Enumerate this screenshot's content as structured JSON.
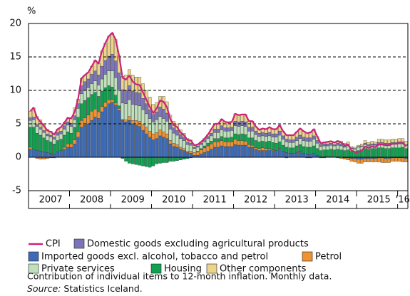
{
  "chart_data": {
    "type": "bar",
    "stacked": true,
    "y_label": "%",
    "ylim": [
      -5,
      20
    ],
    "yticks": [
      -5,
      0,
      5,
      10,
      15,
      20
    ],
    "grid": true,
    "note": "Contribution of individual items to 12-month inflation. Monthly data.",
    "source_label": "Source:",
    "source": "Statistics Iceland.",
    "categories": [
      null,
      null,
      null,
      null,
      null,
      null,
      "2007",
      null,
      null,
      null,
      null,
      null,
      null,
      null,
      null,
      null,
      null,
      null,
      "2008",
      null,
      null,
      null,
      null,
      null,
      null,
      null,
      null,
      null,
      null,
      null,
      "2009",
      null,
      null,
      null,
      null,
      null,
      null,
      null,
      null,
      null,
      null,
      null,
      "2010",
      null,
      null,
      null,
      null,
      null,
      null,
      null,
      null,
      null,
      null,
      null,
      "2011",
      null,
      null,
      null,
      null,
      null,
      null,
      null,
      null,
      null,
      null,
      null,
      "2012",
      null,
      null,
      null,
      null,
      null,
      null,
      null,
      null,
      null,
      null,
      null,
      "2013",
      null,
      null,
      null,
      null,
      null,
      null,
      null,
      null,
      null,
      null,
      null,
      "2014",
      null,
      null,
      null,
      null,
      null,
      null,
      null,
      null,
      null,
      null,
      null,
      "2015",
      null,
      null,
      null,
      null,
      null,
      null,
      "'16",
      null
    ],
    "series": [
      {
        "name": "CPI",
        "type": "line",
        "color": "#cc2277",
        "values": [
          6.9,
          7.4,
          5.9,
          5.3,
          4.7,
          4.0,
          3.8,
          3.4,
          4.2,
          4.5,
          5.2,
          5.9,
          5.8,
          6.8,
          8.7,
          11.8,
          12.3,
          12.7,
          13.6,
          14.5,
          14.0,
          15.9,
          17.1,
          18.1,
          18.6,
          17.6,
          15.2,
          11.9,
          11.6,
          12.2,
          11.3,
          10.9,
          10.8,
          9.7,
          8.6,
          7.5,
          6.6,
          7.3,
          8.5,
          8.3,
          7.5,
          5.7,
          4.8,
          4.5,
          3.7,
          3.3,
          2.6,
          2.5,
          1.8,
          1.9,
          2.3,
          2.8,
          3.4,
          4.2,
          5.0,
          5.0,
          5.7,
          5.3,
          5.2,
          5.3,
          6.5,
          6.3,
          6.4,
          6.4,
          5.4,
          5.4,
          4.6,
          4.1,
          4.3,
          4.2,
          4.5,
          4.2,
          4.2,
          4.8,
          3.9,
          3.3,
          3.3,
          3.3,
          3.8,
          4.3,
          3.9,
          3.6,
          3.7,
          4.2,
          3.1,
          2.1,
          2.2,
          2.3,
          2.4,
          2.2,
          2.4,
          2.2,
          1.8,
          1.9,
          1.0,
          0.8,
          0.8,
          1.0,
          1.6,
          1.4,
          1.6,
          1.5,
          1.9,
          1.9,
          1.8,
          1.8,
          2.0,
          2.0,
          2.1,
          2.1,
          1.6
        ]
      },
      {
        "name": "Domestic goods excluding agricultural products",
        "color": "#7c74b8",
        "values": [
          0.4,
          0.4,
          0.3,
          0.3,
          0.3,
          0.3,
          0.3,
          0.3,
          0.4,
          0.4,
          0.5,
          0.5,
          0.5,
          0.6,
          0.7,
          1.2,
          1.3,
          1.3,
          1.4,
          1.5,
          1.5,
          1.9,
          2.1,
          2.2,
          2.5,
          2.5,
          2.4,
          2.0,
          2.0,
          2.1,
          2.0,
          1.9,
          1.9,
          1.7,
          1.5,
          1.3,
          1.1,
          1.2,
          1.4,
          1.4,
          1.2,
          0.9,
          0.8,
          0.7,
          0.6,
          0.5,
          0.4,
          0.3,
          0.2,
          0.2,
          0.2,
          0.3,
          0.3,
          0.4,
          0.5,
          0.5,
          0.6,
          0.5,
          0.5,
          0.5,
          0.7,
          0.7,
          0.7,
          0.7,
          0.6,
          0.6,
          0.5,
          0.5,
          0.5,
          0.5,
          0.5,
          0.5,
          0.5,
          0.6,
          0.5,
          0.4,
          0.4,
          0.4,
          0.5,
          0.5,
          0.5,
          0.5,
          0.5,
          0.5,
          0.4,
          0.3,
          0.3,
          0.3,
          0.3,
          0.2,
          0.3,
          0.3,
          0.2,
          0.2,
          0.1,
          0.1,
          0.1,
          0.1,
          0.2,
          0.2,
          0.2,
          0.2,
          0.2,
          0.2,
          0.2,
          0.2,
          0.2,
          0.2,
          0.2,
          0.2,
          0.1
        ]
      },
      {
        "name": "Imported goods excl. alcohol, tobacco and petrol",
        "color": "#3d6ab5",
        "values": [
          1.2,
          1.2,
          1.0,
          0.9,
          0.8,
          0.7,
          0.6,
          0.5,
          0.8,
          0.9,
          1.2,
          1.5,
          1.5,
          2.0,
          3.0,
          4.5,
          4.8,
          5.0,
          5.5,
          6.0,
          5.8,
          6.8,
          7.5,
          8.0,
          8.2,
          7.8,
          7.0,
          5.5,
          5.3,
          5.5,
          5.0,
          4.8,
          4.6,
          4.0,
          3.5,
          3.0,
          2.6,
          2.8,
          3.2,
          3.0,
          2.8,
          2.0,
          1.6,
          1.5,
          1.2,
          1.0,
          0.7,
          0.6,
          0.3,
          0.3,
          0.5,
          0.7,
          0.9,
          1.2,
          1.5,
          1.5,
          1.7,
          1.6,
          1.6,
          1.6,
          1.9,
          1.8,
          1.8,
          1.8,
          1.5,
          1.5,
          1.2,
          1.0,
          1.0,
          1.0,
          1.1,
          1.0,
          1.0,
          1.2,
          0.9,
          0.7,
          0.6,
          0.6,
          0.7,
          0.8,
          0.6,
          0.5,
          0.5,
          0.6,
          0.3,
          0.1,
          0.1,
          0.1,
          0.1,
          0.0,
          0.1,
          0.0,
          -0.1,
          -0.1,
          -0.2,
          -0.2,
          -0.3,
          -0.3,
          -0.2,
          -0.2,
          -0.2,
          -0.2,
          -0.1,
          -0.1,
          -0.2,
          -0.2,
          -0.1,
          -0.1,
          -0.1,
          -0.1,
          -0.2
        ]
      },
      {
        "name": "Petrol",
        "color": "#f0922e",
        "values": [
          0.3,
          0.0,
          -0.2,
          -0.3,
          -0.3,
          -0.2,
          -0.1,
          -0.1,
          0.0,
          0.1,
          0.3,
          0.5,
          0.5,
          0.6,
          0.8,
          1.0,
          1.1,
          1.3,
          1.4,
          1.2,
          1.0,
          0.8,
          0.7,
          0.6,
          0.4,
          0.3,
          0.3,
          0.2,
          0.3,
          0.6,
          0.5,
          0.7,
          0.8,
          0.9,
          1.0,
          0.9,
          0.9,
          0.9,
          0.9,
          0.8,
          0.7,
          0.5,
          0.5,
          0.4,
          0.3,
          0.3,
          0.2,
          0.3,
          0.4,
          0.5,
          0.6,
          0.7,
          0.8,
          0.8,
          0.8,
          0.8,
          0.8,
          0.7,
          0.7,
          0.7,
          0.8,
          0.7,
          0.7,
          0.6,
          0.4,
          0.3,
          0.2,
          0.3,
          0.4,
          0.3,
          0.2,
          0.1,
          0.0,
          0.1,
          0.0,
          -0.1,
          0.0,
          0.0,
          0.1,
          0.1,
          0.0,
          -0.1,
          -0.1,
          0.0,
          0.0,
          -0.1,
          -0.1,
          0.0,
          0.0,
          0.0,
          -0.1,
          -0.2,
          -0.2,
          -0.3,
          -0.4,
          -0.5,
          -0.6,
          -0.6,
          -0.5,
          -0.5,
          -0.5,
          -0.5,
          -0.6,
          -0.7,
          -0.6,
          -0.6,
          -0.5,
          -0.5,
          -0.5,
          -0.6,
          -0.5
        ]
      },
      {
        "name": "Private services",
        "color": "#bfe0bb",
        "values": [
          1.0,
          1.1,
          1.0,
          0.9,
          0.8,
          0.7,
          0.7,
          0.7,
          0.8,
          0.8,
          0.9,
          1.0,
          1.0,
          1.1,
          1.3,
          1.5,
          1.5,
          1.5,
          1.6,
          1.7,
          1.7,
          1.8,
          2.0,
          2.2,
          2.4,
          2.6,
          2.5,
          2.4,
          2.4,
          2.5,
          2.4,
          2.3,
          2.3,
          2.2,
          2.0,
          1.9,
          1.8,
          1.9,
          2.0,
          2.0,
          1.9,
          1.7,
          1.5,
          1.4,
          1.3,
          1.2,
          1.0,
          0.9,
          0.6,
          0.6,
          0.6,
          0.6,
          0.7,
          0.8,
          0.9,
          0.9,
          1.0,
          1.0,
          1.0,
          1.0,
          1.2,
          1.2,
          1.2,
          1.2,
          1.0,
          1.0,
          0.9,
          0.8,
          0.8,
          0.8,
          0.8,
          0.8,
          0.9,
          1.0,
          0.9,
          0.8,
          0.8,
          0.8,
          0.8,
          0.9,
          0.9,
          0.9,
          0.9,
          1.0,
          0.8,
          0.6,
          0.6,
          0.6,
          0.6,
          0.6,
          0.6,
          0.6,
          0.5,
          0.6,
          0.4,
          0.4,
          0.5,
          0.5,
          0.6,
          0.5,
          0.5,
          0.5,
          0.6,
          0.6,
          0.6,
          0.6,
          0.6,
          0.6,
          0.7,
          0.6,
          0.5
        ]
      },
      {
        "name": "Housing",
        "color": "#10a050",
        "values": [
          3.0,
          3.3,
          2.6,
          2.4,
          2.1,
          1.8,
          1.7,
          1.5,
          1.7,
          1.7,
          1.8,
          1.8,
          1.6,
          1.9,
          2.2,
          2.5,
          2.6,
          2.6,
          2.5,
          2.5,
          2.3,
          2.3,
          2.2,
          2.1,
          1.9,
          1.2,
          0.4,
          -0.2,
          -0.6,
          -0.9,
          -1.0,
          -1.1,
          -1.2,
          -1.3,
          -1.4,
          -1.5,
          -1.3,
          -1.0,
          -0.9,
          -0.8,
          -0.8,
          -0.6,
          -0.6,
          -0.5,
          -0.4,
          -0.3,
          -0.2,
          -0.1,
          0.0,
          0.1,
          0.2,
          0.3,
          0.4,
          0.4,
          0.5,
          0.5,
          0.6,
          0.6,
          0.6,
          0.7,
          0.8,
          0.9,
          1.0,
          1.0,
          1.0,
          1.1,
          1.1,
          1.0,
          1.0,
          1.0,
          1.1,
          1.1,
          1.1,
          1.0,
          0.9,
          0.8,
          0.8,
          0.8,
          0.9,
          1.0,
          1.0,
          1.0,
          1.0,
          1.1,
          1.0,
          0.9,
          1.0,
          1.0,
          1.1,
          1.1,
          1.1,
          1.1,
          1.0,
          1.1,
          0.9,
          0.8,
          1.0,
          1.1,
          1.3,
          1.2,
          1.3,
          1.3,
          1.4,
          1.4,
          1.3,
          1.3,
          1.4,
          1.4,
          1.4,
          1.5,
          1.3
        ]
      },
      {
        "name": "Other components",
        "color": "#ecd48c",
        "values": [
          1.0,
          1.4,
          1.2,
          1.1,
          1.0,
          0.7,
          0.6,
          0.5,
          0.5,
          0.6,
          0.5,
          0.6,
          0.7,
          1.2,
          0.7,
          1.1,
          1.0,
          1.0,
          1.2,
          1.6,
          1.7,
          2.3,
          2.6,
          3.0,
          3.2,
          3.2,
          2.6,
          2.0,
          2.3,
          2.4,
          2.4,
          2.3,
          2.4,
          2.2,
          2.0,
          1.9,
          1.5,
          1.4,
          1.6,
          1.9,
          1.7,
          1.2,
          1.0,
          1.0,
          0.7,
          0.6,
          0.5,
          0.5,
          0.3,
          0.2,
          0.2,
          0.2,
          0.3,
          0.6,
          0.8,
          0.8,
          1.0,
          0.9,
          0.8,
          0.8,
          1.1,
          1.0,
          1.0,
          1.1,
          0.9,
          0.9,
          0.7,
          0.5,
          0.6,
          0.6,
          0.8,
          0.7,
          0.7,
          0.9,
          0.7,
          0.6,
          0.7,
          0.7,
          0.8,
          1.0,
          0.9,
          0.8,
          0.9,
          1.0,
          0.6,
          0.3,
          0.3,
          0.3,
          0.3,
          0.3,
          0.4,
          0.4,
          0.4,
          0.4,
          0.2,
          0.2,
          0.2,
          0.3,
          0.4,
          0.3,
          0.4,
          0.3,
          0.5,
          0.5,
          0.5,
          0.5,
          0.5,
          0.5,
          0.5,
          0.5,
          0.5
        ]
      }
    ]
  }
}
